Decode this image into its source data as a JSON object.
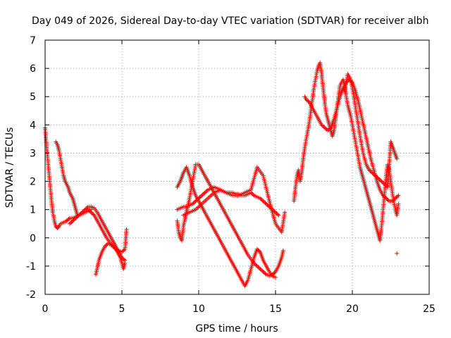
{
  "chart_data": {
    "type": "scatter",
    "title": "Day 049 of 2026, Sidereal Day-to-day VTEC variation (SDTVAR) for receiver albh",
    "xlabel": "GPS time / hours",
    "ylabel": "SDTVAR / TECUs",
    "xlim": [
      0,
      25
    ],
    "ylim": [
      -2,
      7
    ],
    "x_ticks": [
      0,
      5,
      10,
      15,
      20,
      25
    ],
    "y_ticks": [
      -2,
      -1,
      0,
      1,
      2,
      3,
      4,
      5,
      6,
      7
    ],
    "grid": true,
    "marker": "+",
    "marker_color": "#ff0000",
    "series": [
      {
        "name": "SDTVAR",
        "segments": [
          {
            "x": [
              0.0,
              0.1,
              0.2,
              0.3,
              0.4,
              0.5,
              0.6,
              0.7,
              0.8,
              0.9,
              1.0,
              1.2,
              1.4,
              1.6,
              1.8,
              2.0,
              2.2,
              2.4,
              2.6,
              2.8,
              3.0
            ],
            "y": [
              3.9,
              3.2,
              2.6,
              2.0,
              1.4,
              0.9,
              0.6,
              0.4,
              0.35,
              0.4,
              0.5,
              0.55,
              0.6,
              0.7,
              0.7,
              0.75,
              0.8,
              0.85,
              0.9,
              0.95,
              1.0
            ]
          },
          {
            "x": [
              0.7,
              0.8,
              0.9,
              1.0,
              1.1,
              1.2,
              1.3,
              1.4,
              1.5,
              1.6,
              1.7,
              1.8,
              1.9,
              2.0,
              2.1
            ],
            "y": [
              3.4,
              3.3,
              3.1,
              2.8,
              2.5,
              2.2,
              2.0,
              1.9,
              1.8,
              1.6,
              1.5,
              1.4,
              1.2,
              1.0,
              0.8
            ]
          },
          {
            "x": [
              1.6,
              1.8,
              2.0,
              2.2,
              2.4,
              2.6,
              2.8,
              3.0,
              3.2,
              3.4,
              3.6,
              3.8,
              4.0,
              4.2,
              4.4,
              4.6,
              4.8,
              5.0,
              5.2
            ],
            "y": [
              0.5,
              0.6,
              0.7,
              0.8,
              0.9,
              1.0,
              1.1,
              1.1,
              1.05,
              0.9,
              0.7,
              0.5,
              0.3,
              0.1,
              -0.1,
              -0.3,
              -0.5,
              -0.7,
              -0.8
            ]
          },
          {
            "x": [
              2.8,
              3.0,
              3.2,
              3.4,
              3.6,
              3.8,
              4.0,
              4.2,
              4.4,
              4.6,
              4.8,
              5.0,
              5.2,
              5.3
            ],
            "y": [
              1.0,
              0.9,
              0.8,
              0.6,
              0.4,
              0.2,
              0.0,
              -0.15,
              -0.3,
              -0.4,
              -0.45,
              -0.5,
              -0.4,
              0.3
            ]
          },
          {
            "x": [
              3.3,
              3.5,
              3.7,
              3.9,
              4.1,
              4.3,
              4.5,
              4.7,
              4.9,
              5.1,
              5.2
            ],
            "y": [
              -1.3,
              -0.8,
              -0.5,
              -0.3,
              -0.2,
              -0.25,
              -0.3,
              -0.5,
              -0.7,
              -1.1,
              -0.9
            ]
          },
          {
            "x": [
              8.6,
              8.8,
              9.0,
              9.2,
              9.4,
              9.6,
              9.8,
              10.0,
              10.2,
              10.4,
              10.6,
              10.8,
              11.0,
              11.2,
              11.4,
              11.6,
              11.8,
              12.0,
              12.2,
              12.4,
              12.6,
              12.8,
              13.0,
              13.2,
              13.4,
              13.6,
              13.8,
              14.0,
              14.2,
              14.4,
              14.6,
              14.8,
              15.0,
              15.2
            ],
            "y": [
              1.0,
              1.05,
              1.1,
              1.1,
              1.15,
              1.2,
              1.3,
              1.4,
              1.5,
              1.6,
              1.7,
              1.75,
              1.8,
              1.75,
              1.7,
              1.65,
              1.6,
              1.6,
              1.6,
              1.55,
              1.55,
              1.5,
              1.5,
              1.55,
              1.6,
              1.5,
              1.45,
              1.4,
              1.3,
              1.2,
              1.1,
              1.0,
              0.9,
              0.8
            ]
          },
          {
            "x": [
              8.6,
              8.8,
              9.0,
              9.2,
              9.4,
              9.6,
              9.8,
              10.0,
              10.2,
              10.4,
              10.6,
              10.8,
              11.0,
              11.2,
              11.4,
              11.6,
              11.8,
              12.0,
              12.2,
              12.4,
              12.6,
              12.8,
              13.0,
              13.2,
              13.4,
              13.6,
              13.8,
              14.0,
              14.2,
              14.4,
              14.6,
              14.8,
              15.0
            ],
            "y": [
              1.8,
              2.0,
              2.3,
              2.5,
              2.2,
              1.8,
              1.5,
              1.3,
              1.1,
              0.9,
              0.7,
              0.5,
              0.3,
              0.1,
              -0.1,
              -0.3,
              -0.5,
              -0.7,
              -0.9,
              -1.1,
              -1.3,
              -1.5,
              -1.7,
              -1.5,
              -1.1,
              -0.7,
              -0.4,
              -0.5,
              -0.8,
              -1.0,
              -1.2,
              -1.35,
              -1.4
            ]
          },
          {
            "x": [
              8.6,
              8.7,
              8.8,
              8.9,
              9.0,
              9.2,
              9.4,
              9.6,
              9.8,
              10.0,
              10.2,
              10.4,
              10.6,
              10.8,
              11.0,
              11.2,
              11.4,
              11.6,
              11.8,
              12.0,
              12.2,
              12.4,
              12.6,
              12.8,
              13.0,
              13.2,
              13.4,
              13.6,
              13.8,
              14.0,
              14.2,
              14.4,
              14.6,
              14.8,
              15.0,
              15.2,
              15.4,
              15.5
            ],
            "y": [
              0.6,
              0.2,
              0.0,
              -0.1,
              0.4,
              0.9,
              1.4,
              2.0,
              2.6,
              2.6,
              2.4,
              2.2,
              2.0,
              1.8,
              1.6,
              1.4,
              1.2,
              1.0,
              0.8,
              0.6,
              0.4,
              0.2,
              0.0,
              -0.2,
              -0.4,
              -0.6,
              -0.75,
              -0.9,
              -1.0,
              -1.1,
              -1.2,
              -1.3,
              -1.35,
              -1.3,
              -1.2,
              -1.0,
              -0.7,
              -0.45
            ]
          },
          {
            "x": [
              9.0,
              9.4,
              9.8,
              10.2,
              10.6,
              11.0,
              11.4,
              11.8,
              12.2,
              12.6,
              13.0,
              13.4,
              13.8,
              14.2,
              14.6,
              15.0,
              15.4,
              15.6
            ],
            "y": [
              0.8,
              0.9,
              1.0,
              1.2,
              1.4,
              1.6,
              1.7,
              1.6,
              1.5,
              1.5,
              1.6,
              1.7,
              2.5,
              2.2,
              1.3,
              0.5,
              0.2,
              0.9
            ]
          },
          {
            "x": [
              16.2,
              16.3,
              16.4,
              16.5,
              16.6,
              16.7,
              16.8,
              16.9,
              17.0,
              17.1,
              17.2,
              17.3,
              17.4,
              17.5,
              17.6,
              17.7,
              17.8,
              17.9,
              18.0,
              18.1,
              18.2,
              18.3,
              18.4,
              18.5,
              18.6,
              18.7,
              18.8,
              18.9,
              19.0,
              19.1,
              19.2,
              19.3,
              19.4,
              19.5,
              19.6,
              19.7,
              19.8,
              19.9,
              20.0,
              20.1,
              20.2,
              20.3,
              20.4,
              20.5,
              20.6,
              20.7,
              20.8,
              20.9,
              21.0,
              21.1,
              21.2,
              21.3,
              21.4,
              21.5,
              21.6,
              21.7,
              21.8,
              21.9,
              22.0,
              22.1,
              22.2,
              22.3,
              22.4,
              22.5,
              22.6,
              22.7,
              22.8,
              22.9,
              23.0
            ],
            "y": [
              1.3,
              1.8,
              2.2,
              2.4,
              2.0,
              2.3,
              2.8,
              3.2,
              3.5,
              3.8,
              4.1,
              4.5,
              4.9,
              5.3,
              5.6,
              5.9,
              6.1,
              6.2,
              5.8,
              5.3,
              4.8,
              4.4,
              4.2,
              4.0,
              3.8,
              3.6,
              3.8,
              4.2,
              4.6,
              5.0,
              5.4,
              5.5,
              5.6,
              5.4,
              5.0,
              4.7,
              4.5,
              4.3,
              4.0,
              3.7,
              3.4,
              3.1,
              2.8,
              2.5,
              2.3,
              2.1,
              1.9,
              1.7,
              1.5,
              1.3,
              1.1,
              0.9,
              0.7,
              0.5,
              0.3,
              0.1,
              -0.1,
              0.4,
              1.0,
              1.6,
              2.2,
              2.6,
              2.4,
              2.0,
              1.6,
              1.3,
              1.0,
              0.8,
              1.2
            ]
          },
          {
            "x": [
              16.9,
              17.0,
              17.2,
              17.4,
              17.6,
              17.8,
              18.0,
              18.2,
              18.4,
              18.6,
              18.8,
              19.0,
              19.2,
              19.4,
              19.6,
              19.8,
              20.0,
              20.2,
              20.4,
              20.6,
              20.8,
              21.0,
              21.2,
              21.4,
              21.6,
              21.8,
              22.0,
              22.2,
              22.4,
              22.6,
              22.8,
              23.0
            ],
            "y": [
              5.0,
              4.9,
              4.8,
              4.6,
              4.4,
              4.2,
              4.0,
              3.9,
              3.8,
              3.9,
              4.2,
              4.6,
              5.0,
              5.3,
              5.5,
              5.6,
              5.5,
              5.2,
              4.8,
              4.3,
              3.8,
              3.3,
              2.8,
              2.4,
              2.0,
              1.7,
              1.5,
              1.4,
              1.3,
              1.3,
              1.4,
              1.5
            ]
          },
          {
            "x": [
              19.5,
              19.7,
              19.9,
              20.1,
              20.3,
              20.5,
              20.7,
              20.9,
              21.1,
              21.3,
              21.5,
              21.7,
              21.9,
              22.1,
              22.3,
              22.5,
              22.7,
              22.9
            ],
            "y": [
              5.2,
              5.8,
              5.6,
              5.0,
              4.3,
              3.6,
              3.0,
              2.6,
              2.4,
              2.3,
              2.2,
              2.1,
              2.0,
              1.9,
              1.8,
              3.4,
              3.1,
              2.8
            ]
          },
          {
            "x": [
              22.9
            ],
            "y": [
              -0.55
            ]
          }
        ]
      }
    ]
  }
}
